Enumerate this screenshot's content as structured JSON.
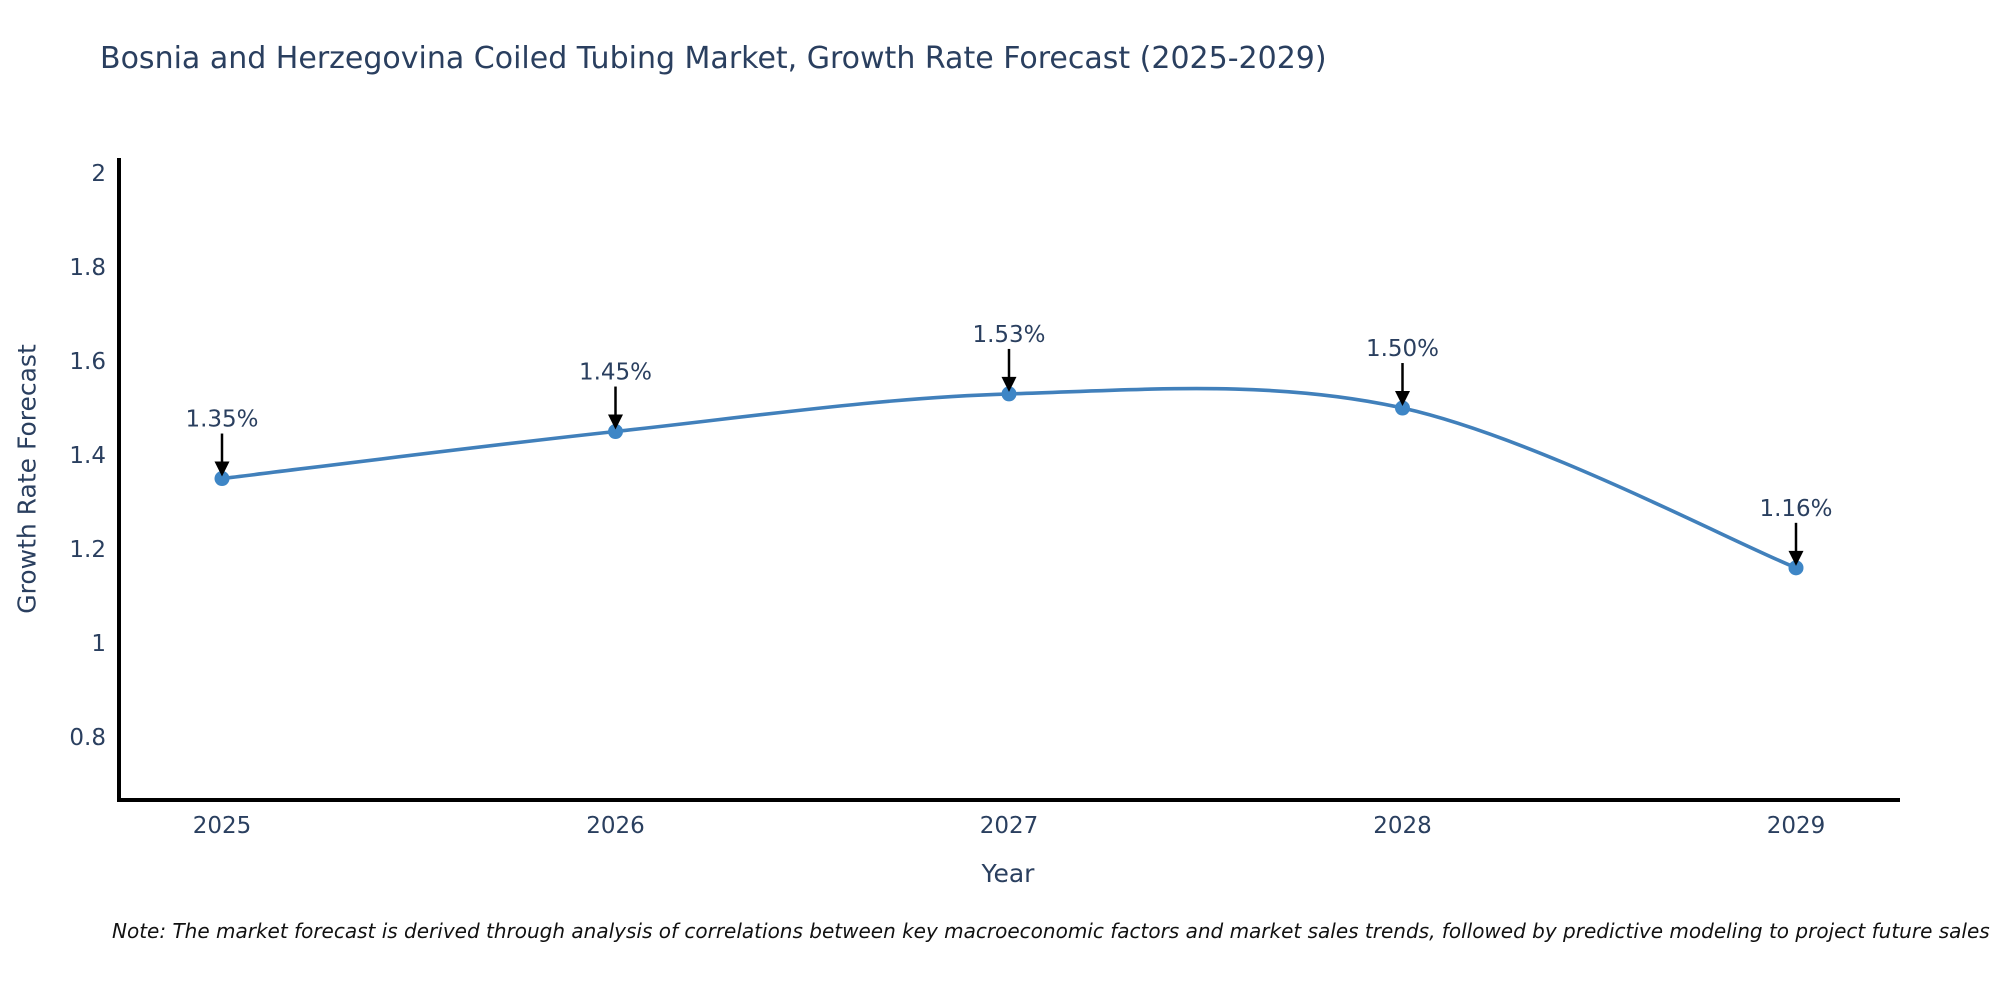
{
  "figure": {
    "note": "Note: The market forecast is derived through analysis of correlations between key macroeconomic factors and market sales trends, followed by predictive modeling to project future sales",
    "colors": {
      "line": "#4180bb",
      "marker": "#3e86c6",
      "text": "#2a3f5f",
      "axis": "#000000",
      "arrow": "#000000",
      "background": "#ffffff"
    }
  },
  "chart_data": {
    "type": "line",
    "title": "Bosnia and Herzegovina Coiled Tubing Market, Growth Rate Forecast (2025-2029)",
    "xlabel": "Year",
    "ylabel": "Growth Rate Forecast",
    "x": [
      2025,
      2026,
      2027,
      2028,
      2029
    ],
    "xtick_labels": [
      "2025",
      "2026",
      "2027",
      "2028",
      "2029"
    ],
    "values": [
      1.35,
      1.45,
      1.53,
      1.5,
      1.16
    ],
    "point_labels": [
      "1.35%",
      "1.45%",
      "1.53%",
      "1.50%",
      "1.16%"
    ],
    "yticks": [
      0.8,
      1,
      1.2,
      1.4,
      1.6,
      1.8,
      2
    ],
    "ytick_labels": [
      "0.8",
      "1",
      "1.2",
      "1.4",
      "1.6",
      "1.8",
      "2"
    ],
    "ylim": [
      0.666,
      2.032
    ],
    "line_shape": "spline",
    "markers": true,
    "grid": false,
    "legend": false
  }
}
